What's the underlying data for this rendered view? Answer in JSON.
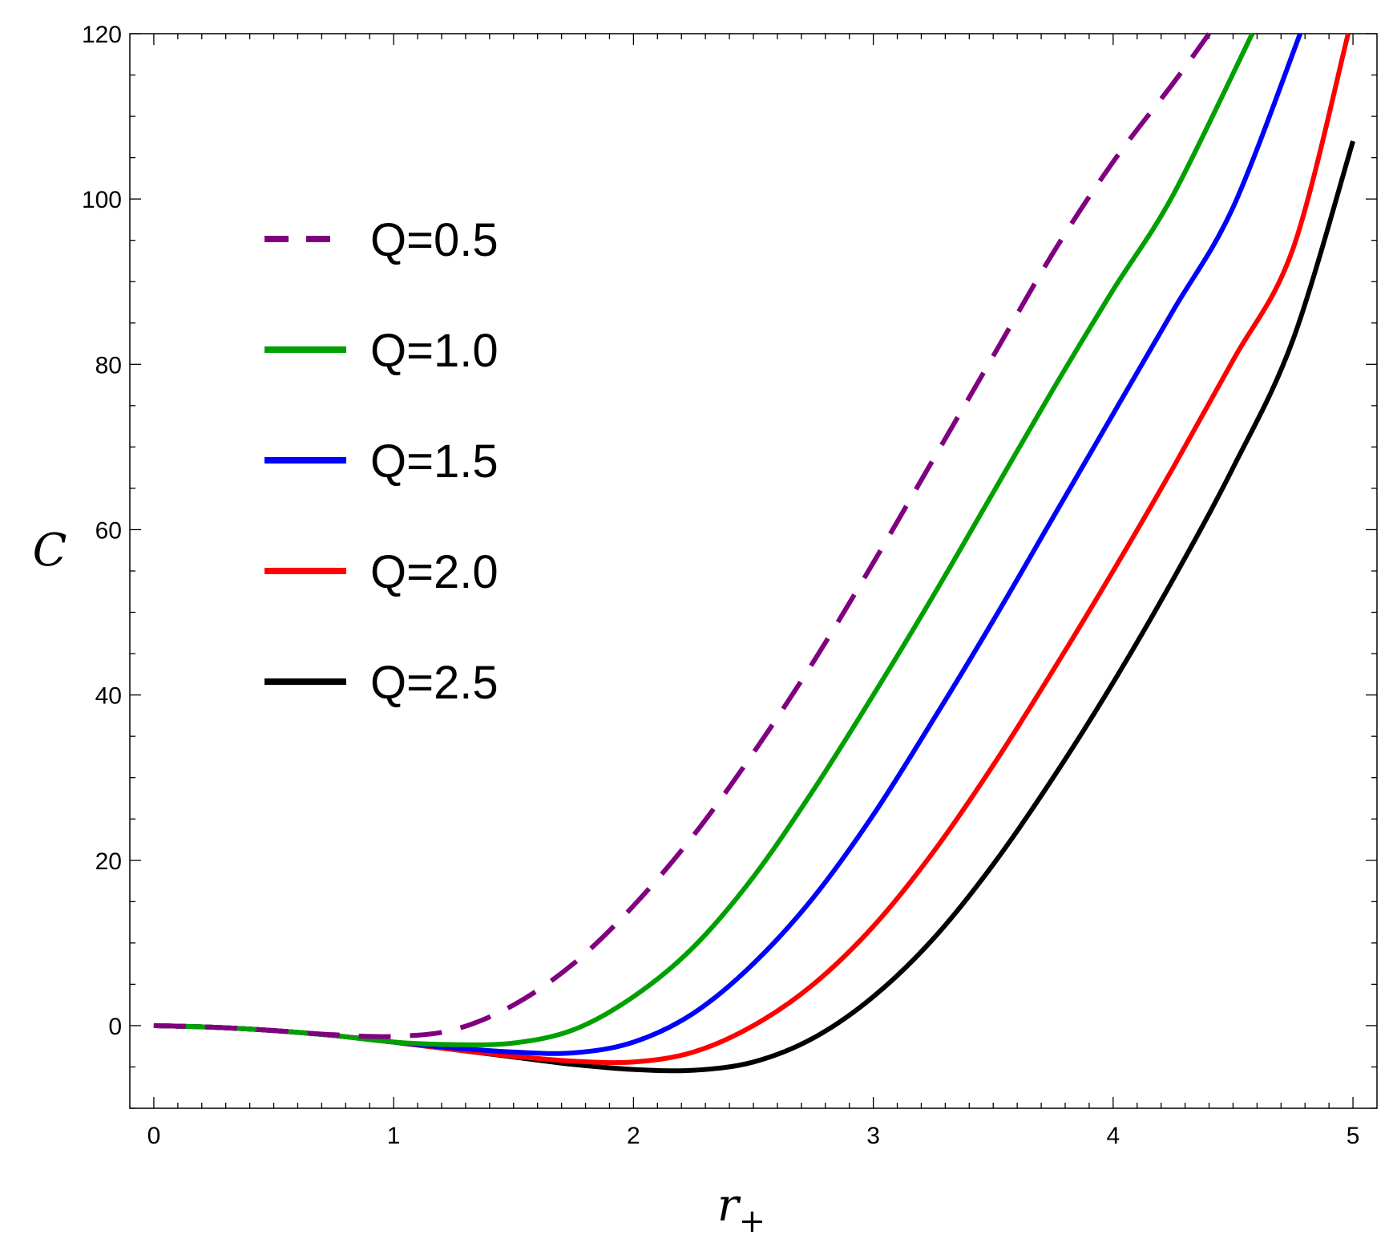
{
  "chart_data": {
    "type": "line",
    "title": "",
    "xlabel": "r",
    "xlabel_subscript": "+",
    "ylabel": "C",
    "xlim": [
      -0.1,
      5.1
    ],
    "ylim": [
      -10,
      120
    ],
    "x_ticks": [
      0,
      1,
      2,
      3,
      4,
      5
    ],
    "y_ticks": [
      0,
      20,
      40,
      60,
      80,
      100,
      120
    ],
    "grid": false,
    "legend_position": "upper-left",
    "series": [
      {
        "name": "Q=0.5",
        "color": "#800080",
        "dash": true,
        "x": [
          0,
          0.25,
          0.5,
          0.75,
          1.0,
          1.25,
          1.5,
          1.75,
          2.0,
          2.25,
          2.5,
          2.75,
          3.0,
          3.25,
          3.5,
          3.75,
          4.0,
          4.25,
          4.4
        ],
        "y": [
          0,
          -0.2,
          -0.6,
          -1.1,
          -1.3,
          -0.5,
          2.5,
          7.5,
          14.5,
          23,
          33,
          44,
          56,
          68.5,
          81,
          93.5,
          104.5,
          114,
          120
        ]
      },
      {
        "name": "Q=1.0",
        "color": "#00a000",
        "dash": false,
        "x": [
          0,
          0.25,
          0.5,
          0.75,
          1.0,
          1.25,
          1.5,
          1.75,
          2.0,
          2.25,
          2.5,
          2.75,
          3.0,
          3.25,
          3.5,
          3.75,
          4.0,
          4.25,
          4.58
        ],
        "y": [
          0,
          -0.2,
          -0.6,
          -1.2,
          -2,
          -2.3,
          -2.1,
          -0.5,
          3.5,
          9.5,
          18,
          28.5,
          40,
          52,
          64.5,
          77,
          89,
          100.5,
          120
        ]
      },
      {
        "name": "Q=1.5",
        "color": "#0000ff",
        "dash": false,
        "x": [
          0,
          0.25,
          0.5,
          0.75,
          1.0,
          1.25,
          1.5,
          1.75,
          2.0,
          2.25,
          2.5,
          2.75,
          3.0,
          3.25,
          3.5,
          3.75,
          4.0,
          4.25,
          4.5,
          4.78
        ],
        "y": [
          0,
          -0.2,
          -0.6,
          -1.2,
          -2,
          -2.7,
          -3.2,
          -3.3,
          -2,
          1.5,
          7.5,
          15.5,
          25.5,
          37,
          49,
          61.5,
          74,
          86.5,
          99,
          120
        ]
      },
      {
        "name": "Q=2.0",
        "color": "#ff0000",
        "dash": false,
        "x": [
          0,
          0.25,
          0.5,
          0.75,
          1.0,
          1.25,
          1.5,
          1.75,
          2.0,
          2.25,
          2.5,
          2.75,
          3.0,
          3.25,
          3.5,
          3.75,
          4.0,
          4.25,
          4.5,
          4.75,
          4.98
        ],
        "y": [
          0,
          -0.2,
          -0.6,
          -1.2,
          -2,
          -2.9,
          -3.7,
          -4.3,
          -4.4,
          -3.2,
          0,
          5,
          12,
          21,
          31.5,
          43,
          55,
          67.5,
          80.5,
          94,
          120
        ]
      },
      {
        "name": "Q=2.5",
        "color": "#000000",
        "dash": false,
        "x": [
          0,
          0.25,
          0.5,
          0.75,
          1.0,
          1.25,
          1.5,
          1.75,
          2.0,
          2.25,
          2.5,
          2.75,
          3.0,
          3.25,
          3.5,
          3.75,
          4.0,
          4.25,
          4.5,
          4.75,
          5.0
        ],
        "y": [
          0,
          -0.2,
          -0.6,
          -1.2,
          -2,
          -2.9,
          -3.8,
          -4.7,
          -5.3,
          -5.4,
          -4.4,
          -1.5,
          3.5,
          10.5,
          19.5,
          30,
          41.5,
          54,
          67.5,
          83,
          107
        ]
      }
    ]
  }
}
